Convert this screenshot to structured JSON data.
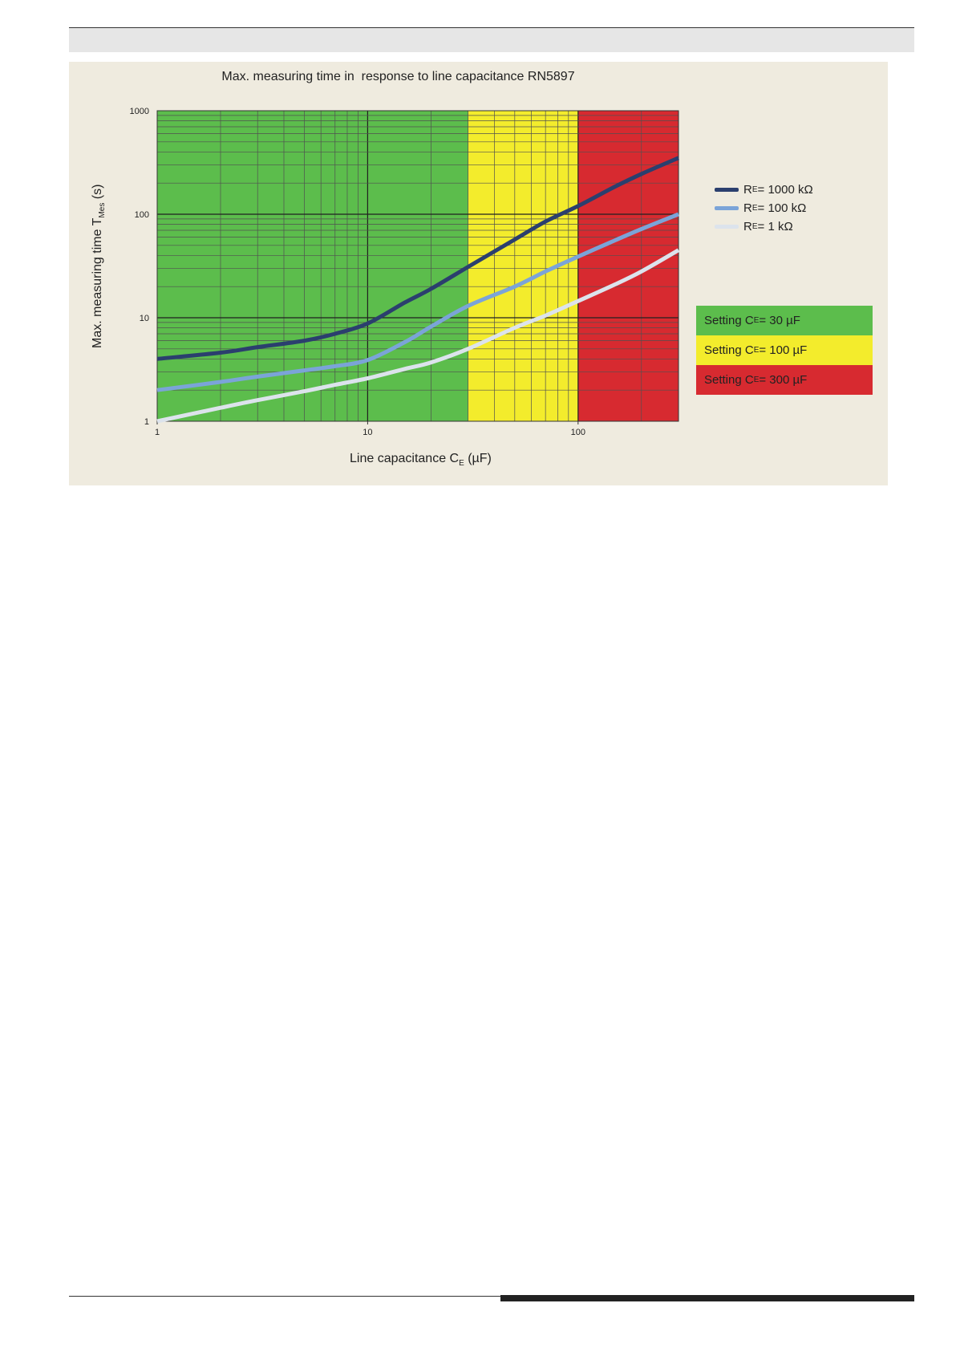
{
  "chart_data": {
    "type": "line",
    "title": "Max. measuring time in  response to line capacitance RN5897",
    "xlabel": "Line  capacitance C",
    "xlabel_sub": "E",
    "xlabel_unit": " (µF)",
    "ylabel": "Max. measuring time T",
    "ylabel_sub": "Mes",
    "ylabel_unit": " (s)",
    "x_scale": "log",
    "y_scale": "log",
    "xlim": [
      1,
      300
    ],
    "ylim": [
      1,
      1000
    ],
    "x_ticks": [
      1,
      10,
      100
    ],
    "x_tick_labels": [
      "1",
      "10",
      "100"
    ],
    "y_ticks": [
      1,
      10,
      100,
      1000
    ],
    "y_tick_labels": [
      "1",
      "10",
      "100",
      "1000"
    ],
    "grid": true,
    "legend_position": "right",
    "zones": [
      {
        "label": "Setting C",
        "label_sub": "E",
        "label_value": " = 30 µF",
        "x_from": 1,
        "x_to": 30,
        "color": "#5cbd4c"
      },
      {
        "label": "Setting C",
        "label_sub": "E",
        "label_value": " = 100 µF",
        "x_from": 30,
        "x_to": 100,
        "color": "#f3ec2c"
      },
      {
        "label": "Setting C",
        "label_sub": "E",
        "label_value": " = 300 µF",
        "x_from": 100,
        "x_to": 300,
        "color": "#d72a30"
      }
    ],
    "series": [
      {
        "name": "R",
        "name_sub": "E",
        "name_value": " = 1000 kΩ",
        "color": "#2b3f6e",
        "x": [
          1,
          2,
          3,
          5,
          7,
          10,
          15,
          20,
          30,
          50,
          70,
          100,
          150,
          200,
          300
        ],
        "y": [
          4,
          4.6,
          5.2,
          6,
          7,
          8.8,
          14,
          19,
          31,
          57,
          85,
          120,
          185,
          245,
          350
        ]
      },
      {
        "name": "R",
        "name_sub": "E",
        "name_value": " = 100 kΩ",
        "color": "#7ba4d8",
        "x": [
          1,
          2,
          3,
          5,
          7,
          10,
          15,
          20,
          30,
          50,
          70,
          100,
          150,
          200,
          300
        ],
        "y": [
          2,
          2.4,
          2.7,
          3.1,
          3.4,
          3.9,
          5.8,
          8.2,
          13,
          20,
          28,
          39,
          56,
          72,
          100
        ]
      },
      {
        "name": "R",
        "name_sub": "E",
        "name_value": " = 1 kΩ",
        "color": "#dce3ec",
        "x": [
          1,
          2,
          3,
          5,
          7,
          10,
          15,
          20,
          30,
          50,
          70,
          100,
          150,
          200,
          300
        ],
        "y": [
          1,
          1.35,
          1.6,
          1.95,
          2.25,
          2.6,
          3.2,
          3.7,
          5,
          8,
          10.5,
          14.5,
          21,
          28,
          45
        ]
      }
    ]
  }
}
